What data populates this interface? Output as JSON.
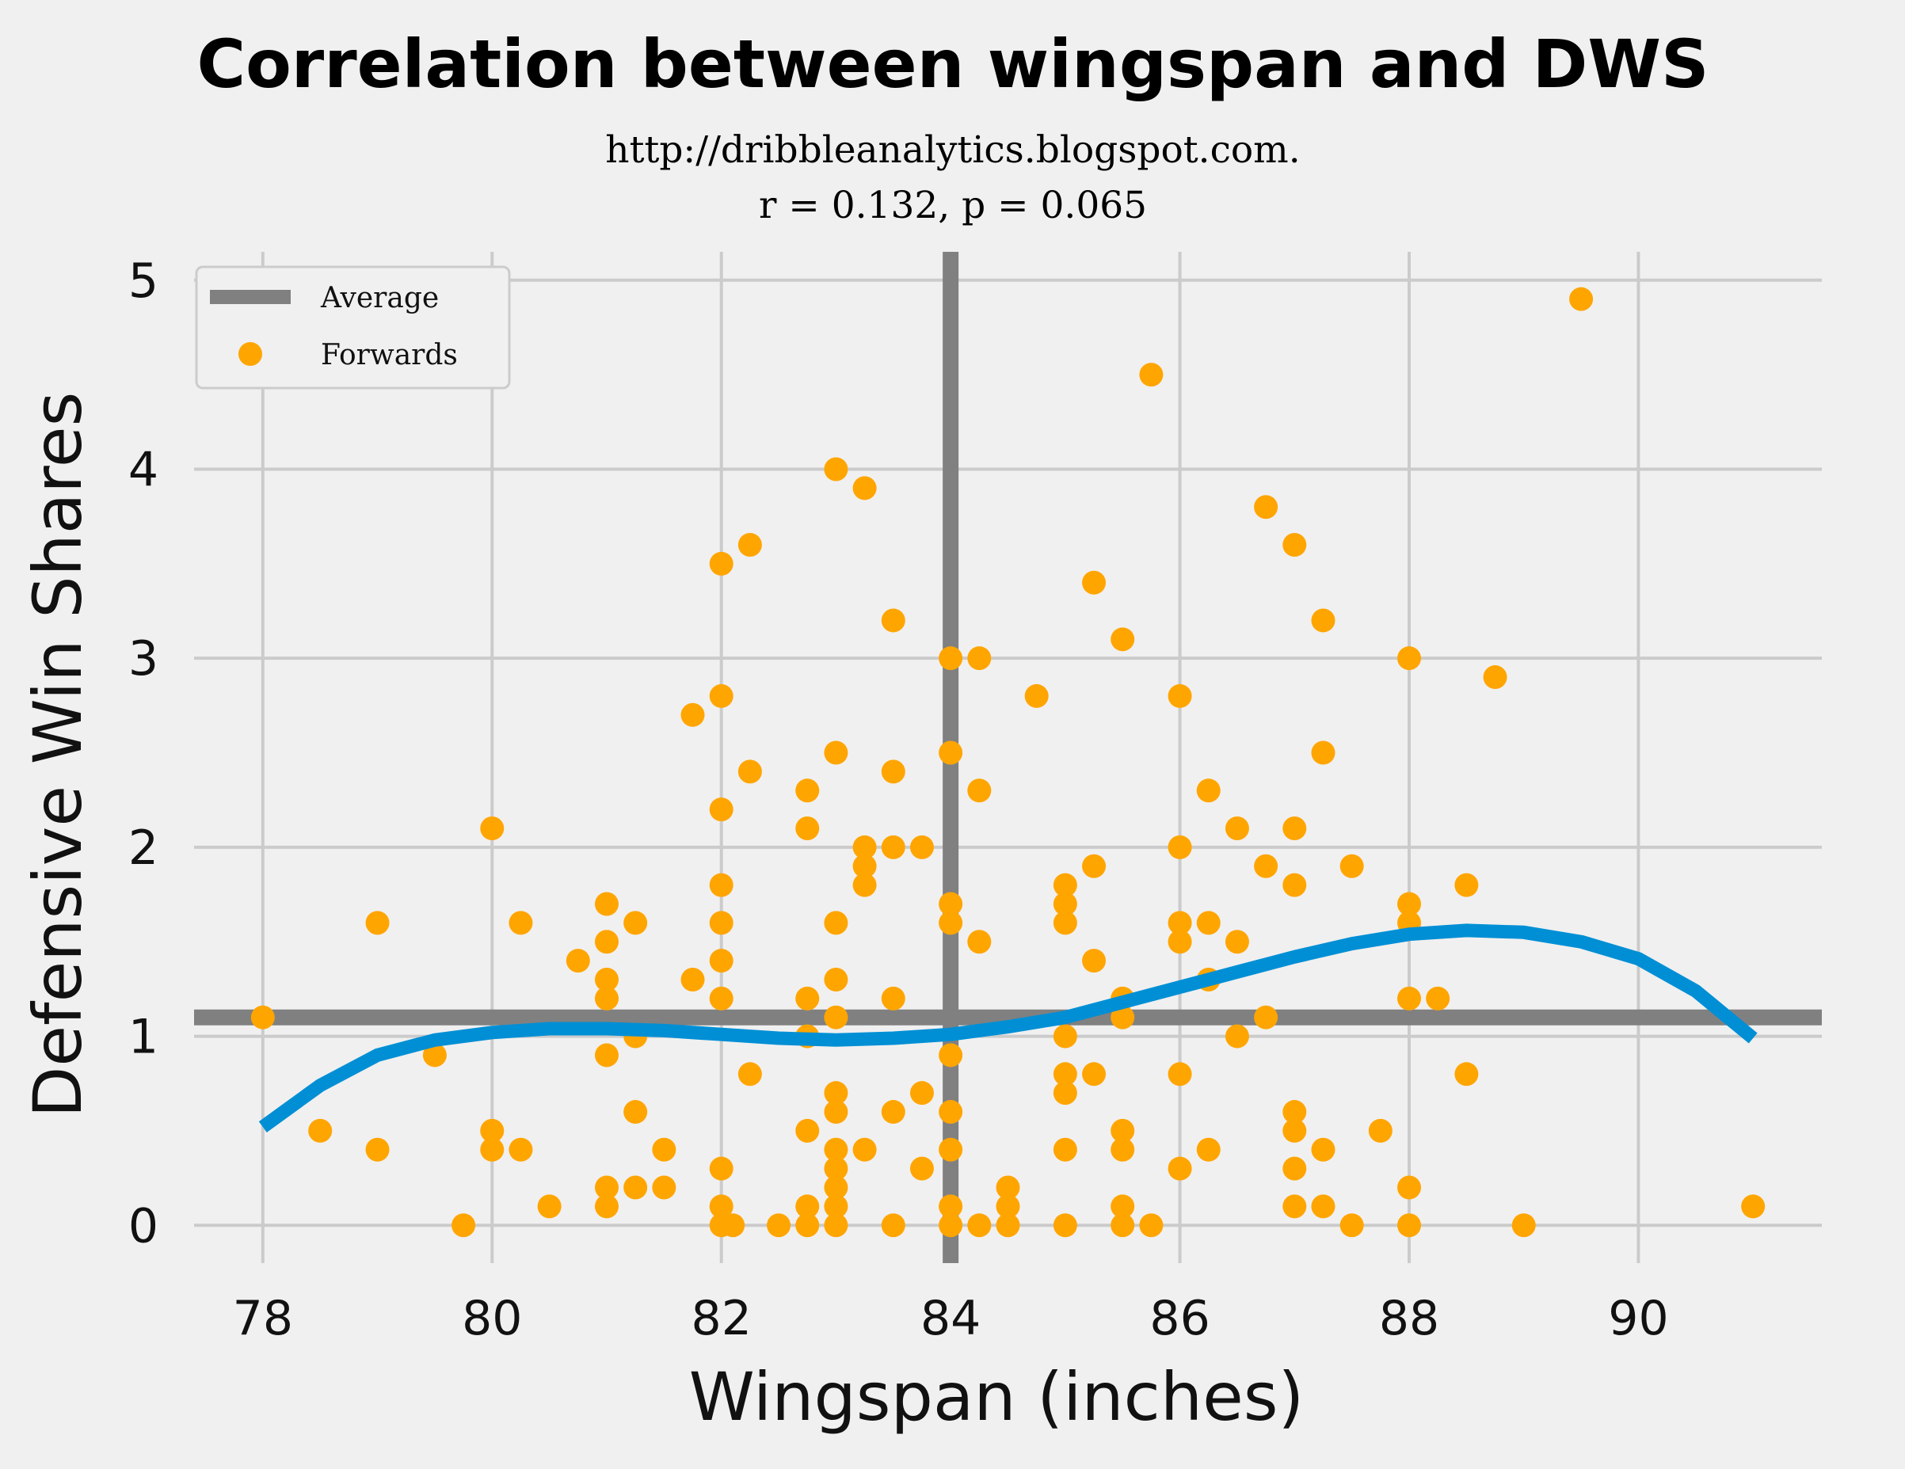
{
  "chart_data": {
    "type": "scatter",
    "title": "Correlation between wingspan and DWS",
    "subtitle_lines": [
      "http://dribbleanalytics.blogspot.com.",
      "r = 0.132, p = 0.065"
    ],
    "xlabel": "Wingspan (inches)",
    "ylabel": "Defensive Win Shares",
    "xlim": [
      77.4,
      91.6
    ],
    "ylim": [
      -0.2,
      5.15
    ],
    "xticks": [
      78,
      80,
      82,
      84,
      86,
      88,
      90
    ],
    "yticks": [
      0,
      1,
      2,
      3,
      4,
      5
    ],
    "grid": true,
    "legend_position": "top-left",
    "legend": [
      {
        "label": "Average",
        "kind": "line",
        "color": "#808080"
      },
      {
        "label": "Forwards",
        "kind": "marker",
        "color": "#ffa500"
      }
    ],
    "average": {
      "x": 84.0,
      "y": 1.1,
      "color": "#808080"
    },
    "colors": {
      "points": "#ffa500",
      "fit": "#008fd5",
      "average": "#808080",
      "background": "#f0f0f0"
    },
    "series": [
      {
        "name": "Forwards",
        "points": [
          [
            78,
            1.1
          ],
          [
            78.5,
            0.5
          ],
          [
            79,
            1.6
          ],
          [
            79,
            0.4
          ],
          [
            79.5,
            0.9
          ],
          [
            79.75,
            0
          ],
          [
            80,
            2.1
          ],
          [
            80,
            0.5
          ],
          [
            80,
            0.4
          ],
          [
            80.25,
            1.6
          ],
          [
            80.25,
            0.4
          ],
          [
            80.5,
            0.1
          ],
          [
            80.75,
            1.4
          ],
          [
            81,
            1.7
          ],
          [
            81,
            1.5
          ],
          [
            81,
            1.3
          ],
          [
            81,
            1.2
          ],
          [
            81,
            0.9
          ],
          [
            81,
            0.2
          ],
          [
            81,
            0.1
          ],
          [
            81.25,
            1.6
          ],
          [
            81.25,
            1.0
          ],
          [
            81.25,
            0.6
          ],
          [
            81.25,
            0.2
          ],
          [
            81.5,
            0.4
          ],
          [
            81.5,
            0.2
          ],
          [
            81.75,
            2.7
          ],
          [
            81.75,
            1.3
          ],
          [
            82,
            3.5
          ],
          [
            82,
            2.8
          ],
          [
            82,
            2.2
          ],
          [
            82,
            1.8
          ],
          [
            82,
            1.6
          ],
          [
            82,
            1.4
          ],
          [
            82,
            1.2
          ],
          [
            82,
            0.3
          ],
          [
            82,
            0.1
          ],
          [
            82,
            0
          ],
          [
            82.1,
            0
          ],
          [
            82.25,
            3.6
          ],
          [
            82.25,
            2.4
          ],
          [
            82.25,
            0.8
          ],
          [
            82.5,
            0
          ],
          [
            82.75,
            2.3
          ],
          [
            82.75,
            2.1
          ],
          [
            82.75,
            1.2
          ],
          [
            82.75,
            1.0
          ],
          [
            82.75,
            0.5
          ],
          [
            82.75,
            0.1
          ],
          [
            82.75,
            0
          ],
          [
            83,
            4.0
          ],
          [
            83,
            2.5
          ],
          [
            83,
            1.6
          ],
          [
            83,
            1.3
          ],
          [
            83,
            1.1
          ],
          [
            83,
            0.7
          ],
          [
            83,
            0.6
          ],
          [
            83,
            0.4
          ],
          [
            83,
            0.3
          ],
          [
            83,
            0.2
          ],
          [
            83,
            0.1
          ],
          [
            83,
            0
          ],
          [
            83.25,
            3.9
          ],
          [
            83.25,
            2.0
          ],
          [
            83.25,
            1.9
          ],
          [
            83.25,
            1.8
          ],
          [
            83.25,
            0.4
          ],
          [
            83.5,
            3.2
          ],
          [
            83.5,
            2.4
          ],
          [
            83.5,
            2.0
          ],
          [
            83.5,
            1.2
          ],
          [
            83.5,
            0.6
          ],
          [
            83.5,
            0
          ],
          [
            83.75,
            2.0
          ],
          [
            83.75,
            0.7
          ],
          [
            83.75,
            0.3
          ],
          [
            84,
            3.0
          ],
          [
            84,
            2.5
          ],
          [
            84,
            1.7
          ],
          [
            84,
            1.6
          ],
          [
            84,
            0.9
          ],
          [
            84,
            0.6
          ],
          [
            84,
            0.4
          ],
          [
            84,
            0.1
          ],
          [
            84,
            0
          ],
          [
            84.25,
            3.0
          ],
          [
            84.25,
            2.3
          ],
          [
            84.25,
            1.5
          ],
          [
            84.25,
            0
          ],
          [
            84.5,
            0.2
          ],
          [
            84.5,
            0.1
          ],
          [
            84.5,
            0
          ],
          [
            84.75,
            2.8
          ],
          [
            85,
            1.8
          ],
          [
            85,
            1.7
          ],
          [
            85,
            1.6
          ],
          [
            85,
            1.0
          ],
          [
            85,
            0.8
          ],
          [
            85,
            0.7
          ],
          [
            85,
            0.4
          ],
          [
            85,
            0
          ],
          [
            85.25,
            3.4
          ],
          [
            85.25,
            1.9
          ],
          [
            85.25,
            1.4
          ],
          [
            85.25,
            0.8
          ],
          [
            85.5,
            3.1
          ],
          [
            85.5,
            1.2
          ],
          [
            85.5,
            1.1
          ],
          [
            85.5,
            0.5
          ],
          [
            85.5,
            0.4
          ],
          [
            85.5,
            0.1
          ],
          [
            85.5,
            0
          ],
          [
            85.75,
            4.5
          ],
          [
            85.75,
            0
          ],
          [
            86,
            2.8
          ],
          [
            86,
            2.0
          ],
          [
            86,
            1.6
          ],
          [
            86,
            1.5
          ],
          [
            86,
            0.8
          ],
          [
            86,
            0.3
          ],
          [
            86.25,
            2.3
          ],
          [
            86.25,
            1.6
          ],
          [
            86.25,
            1.3
          ],
          [
            86.25,
            0.4
          ],
          [
            86.5,
            2.1
          ],
          [
            86.5,
            1.5
          ],
          [
            86.5,
            1.0
          ],
          [
            86.75,
            3.8
          ],
          [
            86.75,
            1.9
          ],
          [
            86.75,
            1.1
          ],
          [
            87,
            3.6
          ],
          [
            87,
            2.1
          ],
          [
            87,
            1.8
          ],
          [
            87,
            0.6
          ],
          [
            87,
            0.5
          ],
          [
            87,
            0.3
          ],
          [
            87,
            0.1
          ],
          [
            87.25,
            3.2
          ],
          [
            87.25,
            2.5
          ],
          [
            87.25,
            0.4
          ],
          [
            87.25,
            0.1
          ],
          [
            87.5,
            1.9
          ],
          [
            87.5,
            0
          ],
          [
            87.75,
            0.5
          ],
          [
            88,
            3.0
          ],
          [
            88,
            1.7
          ],
          [
            88,
            1.6
          ],
          [
            88,
            1.2
          ],
          [
            88,
            0.2
          ],
          [
            88,
            0
          ],
          [
            88.25,
            1.2
          ],
          [
            88.5,
            1.8
          ],
          [
            88.5,
            0.8
          ],
          [
            88.75,
            2.9
          ],
          [
            89,
            0
          ],
          [
            89.5,
            4.9
          ],
          [
            91,
            0.1
          ]
        ]
      },
      {
        "name": "",
        "kind": "line",
        "x": [
          78,
          78.5,
          79,
          79.5,
          80,
          80.5,
          81,
          81.5,
          82,
          82.5,
          83,
          83.5,
          84,
          84.5,
          85,
          85.5,
          86,
          86.5,
          87,
          87.5,
          88,
          88.5,
          89,
          89.5,
          90,
          90.5,
          91
        ],
        "y": [
          0.52,
          0.74,
          0.9,
          0.98,
          1.02,
          1.04,
          1.04,
          1.03,
          1.01,
          0.99,
          0.98,
          0.99,
          1.01,
          1.05,
          1.1,
          1.18,
          1.26,
          1.34,
          1.42,
          1.49,
          1.54,
          1.56,
          1.55,
          1.5,
          1.41,
          1.24,
          0.99
        ]
      }
    ]
  }
}
